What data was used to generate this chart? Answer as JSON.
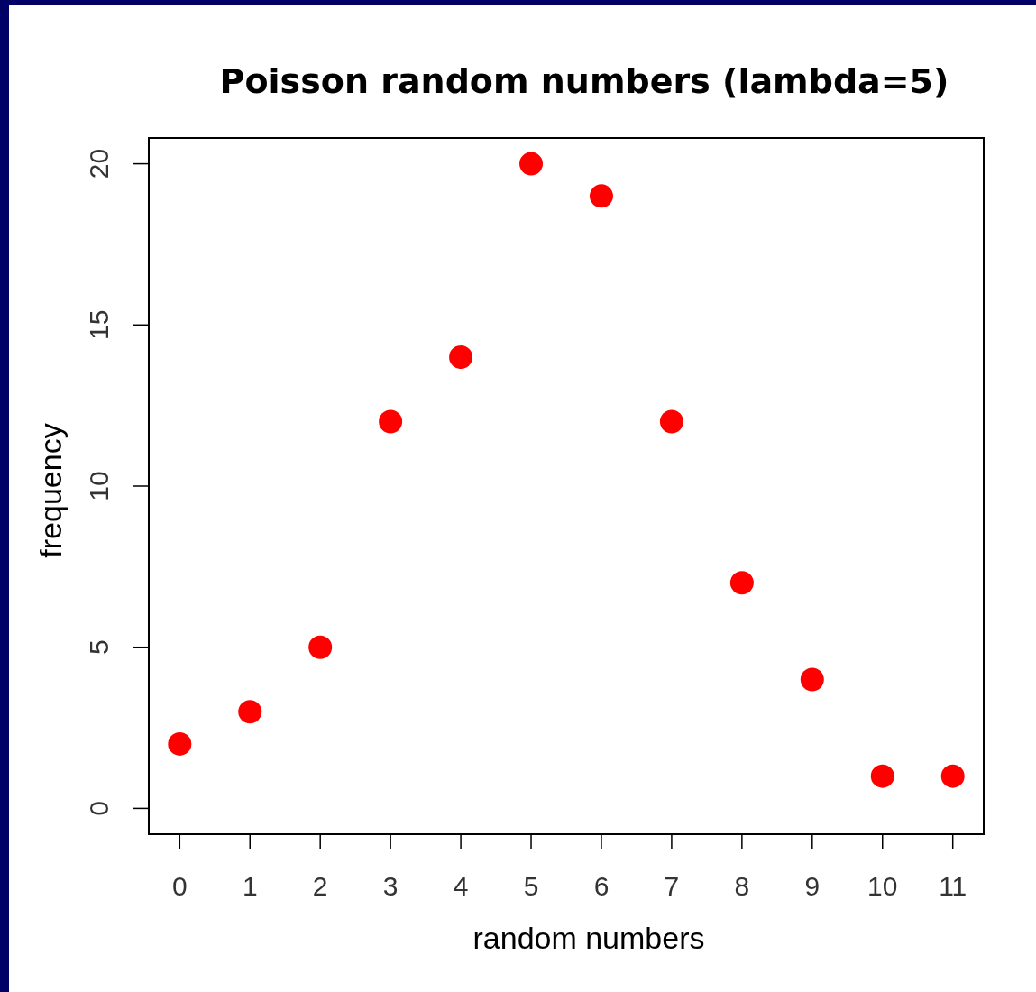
{
  "chart_data": {
    "type": "scatter",
    "title": "Poisson random numbers (lambda=5)",
    "xlabel": "random numbers",
    "ylabel": "frequency",
    "x": [
      0,
      1,
      2,
      3,
      4,
      5,
      6,
      7,
      8,
      9,
      10,
      11
    ],
    "series": [
      {
        "color": "#ff0000",
        "values": [
          2,
          3,
          5,
          12,
          14,
          20,
          19,
          12,
          7,
          4,
          1,
          1
        ]
      }
    ],
    "xlim": [
      -0.44,
      11.44
    ],
    "ylim": [
      -0.8,
      20.8
    ],
    "xticks": [
      0,
      1,
      2,
      3,
      4,
      5,
      6,
      7,
      8,
      9,
      10,
      11
    ],
    "yticks": [
      0,
      5,
      10,
      15,
      20
    ],
    "marker": "circle"
  }
}
